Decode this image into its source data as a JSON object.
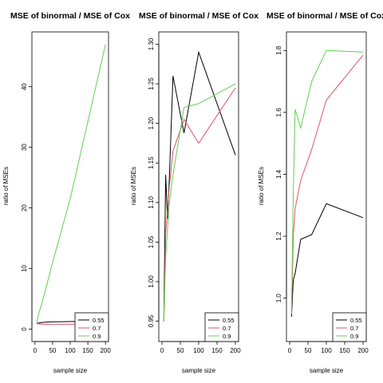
{
  "chart_data": [
    {
      "type": "line",
      "title": "MSE of binormal / MSE of Cox",
      "xlabel": "sample size",
      "ylabel": "ratio of MSEs",
      "xlim": [
        0,
        200
      ],
      "ylim": [
        0,
        47
      ],
      "x_ticks": [
        0,
        50,
        100,
        150,
        200
      ],
      "y_ticks": [
        0,
        10,
        20,
        30,
        40
      ],
      "series": [
        {
          "name": "0.55",
          "color": "#000000",
          "x": [
            5,
            10,
            20,
            30,
            50,
            100,
            200
          ],
          "y": [
            0.9,
            1.0,
            1.1,
            1.15,
            1.2,
            1.25,
            1.3
          ]
        },
        {
          "name": "0.7",
          "color": "#DF536B",
          "x": [
            5,
            10,
            20,
            30,
            50,
            100,
            200
          ],
          "y": [
            1.0,
            0.85,
            0.8,
            0.8,
            0.8,
            0.8,
            0.8
          ]
        },
        {
          "name": "0.9",
          "color": "#61D04F",
          "x": [
            5,
            10,
            20,
            30,
            50,
            100,
            200
          ],
          "y": [
            1.0,
            2.5,
            4.3,
            6.5,
            11.0,
            21.5,
            47.0
          ]
        }
      ],
      "legend": {
        "position": "bottom-right",
        "entries": [
          "0.55",
          "0.7",
          "0.9"
        ]
      },
      "grid": false
    },
    {
      "type": "line",
      "title": "MSE of binormal / MSE of Cox",
      "xlabel": "sample size",
      "ylabel": "ratio of MSEs",
      "xlim": [
        0,
        200
      ],
      "ylim": [
        0.94,
        1.3
      ],
      "x_ticks": [
        0,
        50,
        100,
        150,
        200
      ],
      "y_ticks": [
        "0.95",
        "1.00",
        "1.05",
        "1.10",
        "1.15",
        "1.20",
        "1.25",
        "1.30"
      ],
      "series": [
        {
          "name": "0.55",
          "color": "#000000",
          "x": [
            5,
            10,
            15,
            20,
            30,
            60,
            100,
            200
          ],
          "y": [
            0.95,
            1.135,
            1.08,
            1.13,
            1.26,
            1.188,
            1.29,
            1.16
          ]
        },
        {
          "name": "0.7",
          "color": "#DF536B",
          "x": [
            5,
            10,
            15,
            20,
            30,
            60,
            100,
            200
          ],
          "y": [
            0.95,
            1.06,
            1.09,
            1.12,
            1.165,
            1.205,
            1.175,
            1.245
          ]
        },
        {
          "name": "0.9",
          "color": "#61D04F",
          "x": [
            5,
            10,
            15,
            20,
            30,
            60,
            100,
            200
          ],
          "y": [
            0.95,
            1.03,
            1.065,
            1.1,
            1.135,
            1.22,
            1.225,
            1.25
          ]
        }
      ],
      "legend": {
        "position": "bottom-right",
        "entries": [
          "0.55",
          "0.7",
          "0.9"
        ]
      },
      "grid": false
    },
    {
      "type": "line",
      "title": "MSE of binormal / MSE of Cox",
      "xlabel": "sample size",
      "ylabel": "ratio of MSEs",
      "xlim": [
        0,
        200
      ],
      "ylim": [
        0.9,
        1.82
      ],
      "x_ticks": [
        0,
        50,
        100,
        150,
        200
      ],
      "y_ticks": [
        "1.0",
        "1.2",
        "1.4",
        "1.6",
        "1.8"
      ],
      "series": [
        {
          "name": "0.55",
          "color": "#000000",
          "x": [
            5,
            10,
            15,
            30,
            60,
            100,
            200
          ],
          "y": [
            0.94,
            1.06,
            1.08,
            1.19,
            1.205,
            1.305,
            1.26
          ]
        },
        {
          "name": "0.7",
          "color": "#DF536B",
          "x": [
            5,
            10,
            15,
            30,
            60,
            100,
            200
          ],
          "y": [
            0.95,
            1.2,
            1.29,
            1.38,
            1.48,
            1.64,
            1.785
          ]
        },
        {
          "name": "0.9",
          "color": "#61D04F",
          "x": [
            5,
            10,
            15,
            30,
            60,
            100,
            200
          ],
          "y": [
            0.95,
            1.35,
            1.61,
            1.55,
            1.7,
            1.8,
            1.795
          ]
        }
      ],
      "legend": {
        "position": "bottom-right",
        "entries": [
          "0.55",
          "0.7",
          "0.9"
        ]
      },
      "grid": false
    }
  ]
}
